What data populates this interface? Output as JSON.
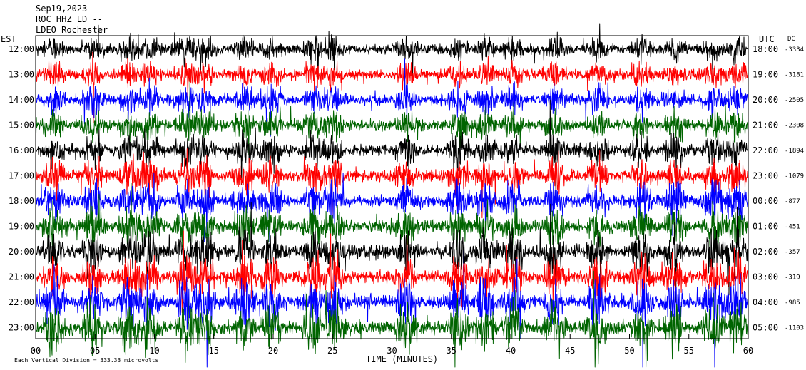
{
  "chart_data": {
    "type": "line",
    "title_lines": [
      "Sep19,2023",
      "ROC HHZ LD --",
      "LDEO Rochester"
    ],
    "left_axis_label": "EST",
    "right_axis_label": "UTC",
    "dc_label": "DC",
    "xlabel": "TIME (MINUTES)",
    "xlim": [
      0,
      60
    ],
    "x_ticks": [
      "00",
      "05",
      "10",
      "15",
      "20",
      "25",
      "30",
      "35",
      "40",
      "45",
      "50",
      "55",
      "60"
    ],
    "footer": "Each Vertical Division = 333.33 microvolts",
    "trace_colors": [
      "#000000",
      "#ff0000",
      "#0000ff",
      "#006400"
    ],
    "rows": [
      {
        "est": "12:00",
        "utc": "18:00",
        "dc": "-3334"
      },
      {
        "est": "13:00",
        "utc": "19:00",
        "dc": "-3181"
      },
      {
        "est": "14:00",
        "utc": "20:00",
        "dc": "-2505"
      },
      {
        "est": "15:00",
        "utc": "21:00",
        "dc": "-2308"
      },
      {
        "est": "16:00",
        "utc": "22:00",
        "dc": "-1894"
      },
      {
        "est": "17:00",
        "utc": "23:00",
        "dc": "-1079"
      },
      {
        "est": "18:00",
        "utc": "00:00",
        "dc": "-877"
      },
      {
        "est": "19:00",
        "utc": "01:00",
        "dc": "-451"
      },
      {
        "est": "20:00",
        "utc": "02:00",
        "dc": "-357"
      },
      {
        "est": "21:00",
        "utc": "03:00",
        "dc": "-319"
      },
      {
        "est": "22:00",
        "utc": "04:00",
        "dc": "-985"
      },
      {
        "est": "23:00",
        "utc": "05:00",
        "dc": "-1103"
      }
    ]
  }
}
